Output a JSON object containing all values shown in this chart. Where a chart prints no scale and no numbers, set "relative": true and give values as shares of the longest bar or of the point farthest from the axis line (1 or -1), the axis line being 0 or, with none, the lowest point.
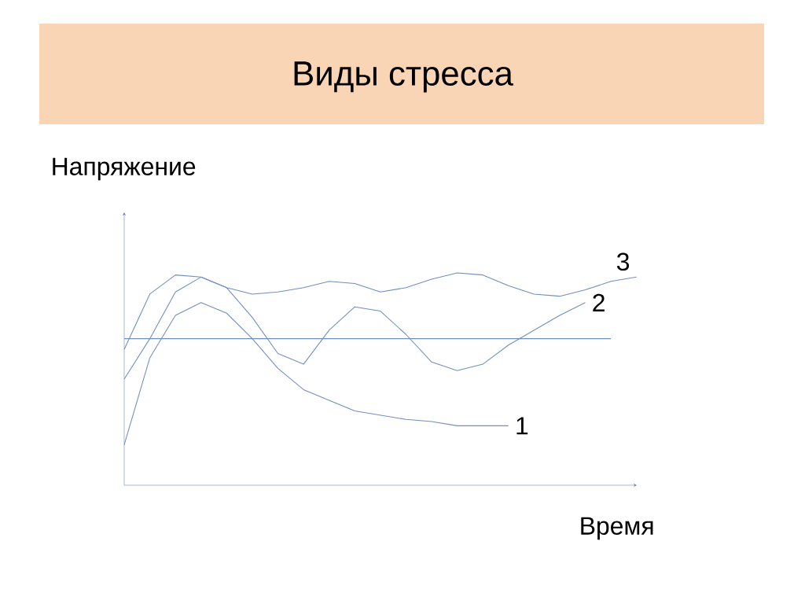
{
  "chart_data": {
    "type": "line",
    "title": "Виды стресса",
    "xlabel": "Время",
    "ylabel": "Напряжение",
    "relative": true,
    "categories": [
      null,
      null,
      null,
      null,
      null,
      null,
      null,
      null,
      null,
      null,
      null,
      null,
      null,
      null,
      null,
      null,
      null,
      null,
      null,
      null,
      null
    ],
    "series": [
      {
        "name": "1",
        "color": "#6f8fbf",
        "values": [
          0.19,
          0.6,
          0.8,
          0.86,
          0.81,
          0.69,
          0.55,
          0.45,
          0.4,
          0.35,
          0.33,
          0.31,
          0.3,
          0.28,
          0.28,
          0.28,
          null,
          null,
          null,
          null,
          null
        ]
      },
      {
        "name": "2",
        "color": "#6f8fbf",
        "values": [
          0.5,
          0.69,
          0.91,
          0.98,
          0.93,
          0.79,
          0.62,
          0.57,
          0.73,
          0.84,
          0.82,
          0.71,
          0.58,
          0.54,
          0.57,
          0.66,
          0.73,
          0.8,
          0.86,
          null,
          null
        ]
      },
      {
        "name": "3",
        "color": "#6f8fbf",
        "values": [
          0.64,
          0.9,
          0.99,
          0.98,
          0.93,
          0.9,
          0.91,
          0.93,
          0.96,
          0.95,
          0.91,
          0.93,
          0.97,
          1.0,
          0.99,
          0.94,
          0.9,
          0.89,
          0.92,
          0.96,
          0.98
        ]
      },
      {
        "color": "#6f8fbf",
        "values": [
          0.69,
          0.69,
          0.69,
          0.69,
          0.69,
          0.69,
          0.69,
          0.69,
          0.69,
          0.69,
          0.69,
          0.69,
          0.69,
          0.69,
          0.69,
          0.69,
          0.69,
          0.69,
          0.69,
          0.69,
          null
        ]
      }
    ]
  }
}
